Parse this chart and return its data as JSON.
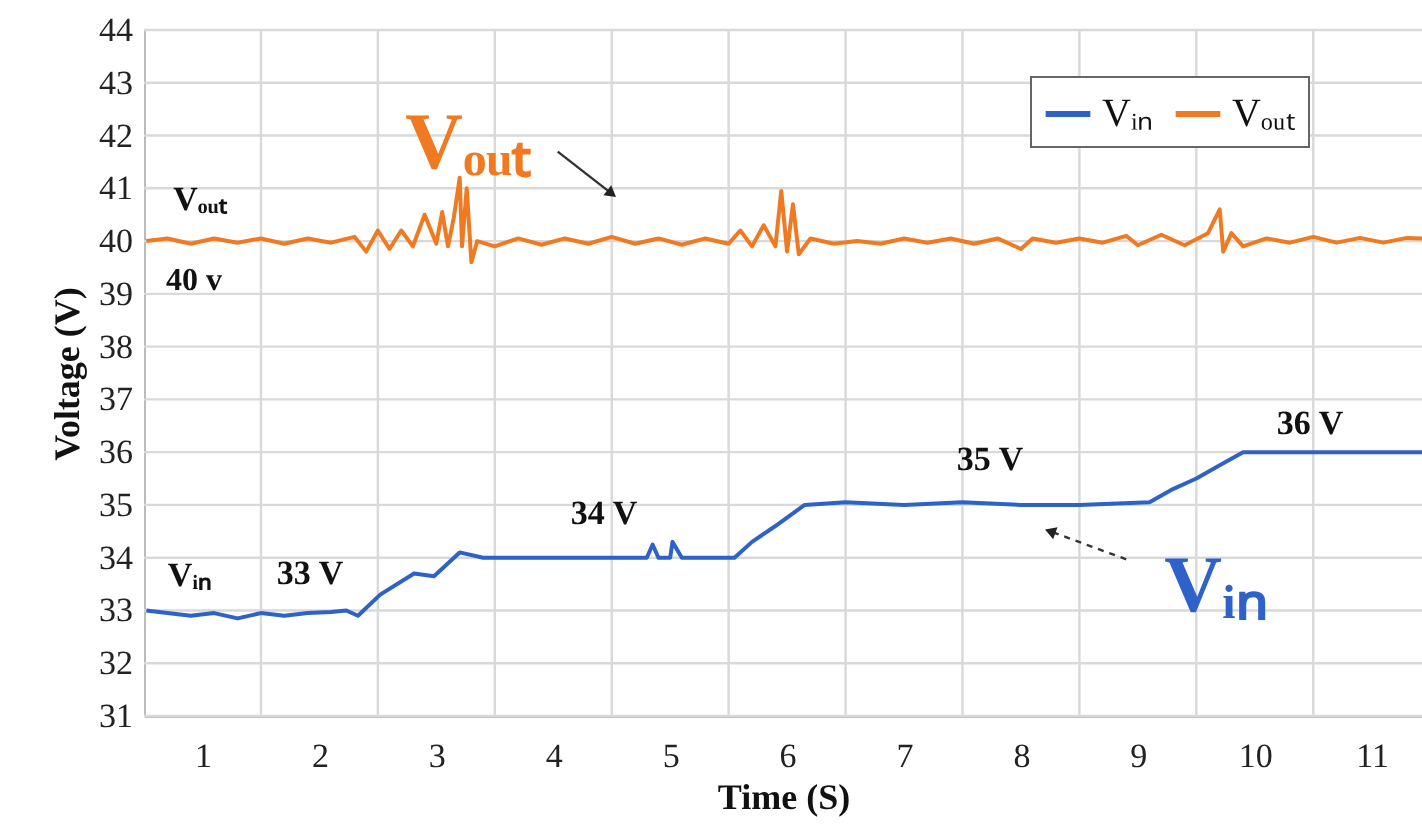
{
  "chart_data": {
    "type": "line",
    "xlabel": "Time (S)",
    "ylabel": "Voltage (V)",
    "xlim": [
      0.5,
      11.43
    ],
    "ylim": [
      31,
      44
    ],
    "xticks": [
      1,
      {
        "value": 1.5,
        "label": null
      },
      2,
      {
        "value": 2.5,
        "label": null
      },
      3,
      {
        "value": 3.5,
        "label": null
      },
      4,
      {
        "value": 4.5,
        "label": null
      },
      5,
      {
        "value": 5.5,
        "label": null
      },
      6,
      {
        "value": 6.5,
        "label": null
      },
      7,
      {
        "value": 7.5,
        "label": null
      },
      8,
      {
        "value": 8.5,
        "label": null
      },
      9,
      {
        "value": 9.5,
        "label": null
      },
      10,
      {
        "value": 10.5,
        "label": null
      },
      11
    ],
    "yticks": [
      31,
      32,
      33,
      34,
      35,
      36,
      37,
      38,
      39,
      40,
      41,
      42,
      43,
      44
    ],
    "grid": true,
    "legend": "top right",
    "line_style": "solid",
    "marker": "none",
    "series": [
      {
        "name": "Vᵢₙ",
        "color": "#2e62c9",
        "x": [
          0.52,
          0.7,
          0.9,
          1.1,
          1.3,
          1.5,
          1.7,
          1.9,
          2.1,
          2.23,
          2.33,
          2.52,
          2.81,
          2.98,
          3.2,
          3.4,
          4.0,
          4.8,
          4.85,
          4.9,
          5.0,
          5.02,
          5.1,
          5.55,
          5.7,
          5.9,
          6.15,
          6.5,
          7.0,
          7.5,
          8.0,
          8.5,
          9.1,
          9.3,
          9.5,
          9.7,
          9.9,
          10.5,
          11.0,
          11.43
        ],
        "values": [
          33.0,
          32.95,
          32.9,
          32.95,
          32.85,
          32.95,
          32.9,
          32.95,
          32.97,
          33.0,
          32.9,
          33.3,
          33.7,
          33.65,
          34.1,
          34.0,
          34.0,
          34.0,
          34.25,
          34.0,
          34.0,
          34.3,
          34.0,
          34.0,
          34.3,
          34.6,
          35.0,
          35.05,
          35.0,
          35.05,
          35.0,
          35.0,
          35.05,
          35.3,
          35.5,
          35.75,
          36.0,
          36.0,
          36.0,
          36.0
        ]
      },
      {
        "name": "Vₒᵤₜ",
        "color": "#f07a22",
        "x": [
          0.52,
          0.7,
          0.9,
          1.1,
          1.3,
          1.5,
          1.7,
          1.9,
          2.1,
          2.3,
          2.4,
          2.5,
          2.6,
          2.7,
          2.8,
          2.9,
          3.0,
          3.05,
          3.1,
          3.15,
          3.2,
          3.22,
          3.26,
          3.3,
          3.35,
          3.5,
          3.7,
          3.9,
          4.1,
          4.3,
          4.5,
          4.7,
          4.9,
          5.1,
          5.3,
          5.5,
          5.6,
          5.7,
          5.8,
          5.9,
          5.95,
          6.0,
          6.05,
          6.1,
          6.2,
          6.4,
          6.6,
          6.8,
          7.0,
          7.2,
          7.4,
          7.6,
          7.8,
          8.0,
          8.1,
          8.3,
          8.5,
          8.7,
          8.9,
          9.0,
          9.2,
          9.4,
          9.6,
          9.7,
          9.73,
          9.8,
          9.9,
          10.1,
          10.3,
          10.5,
          10.7,
          10.9,
          11.1,
          11.3,
          11.43
        ],
        "values": [
          40.0,
          40.05,
          39.95,
          40.05,
          39.97,
          40.05,
          39.95,
          40.05,
          39.97,
          40.08,
          39.8,
          40.2,
          39.85,
          40.2,
          39.9,
          40.5,
          39.95,
          40.55,
          39.9,
          40.45,
          41.2,
          39.9,
          41.0,
          39.6,
          40.0,
          39.9,
          40.05,
          39.93,
          40.05,
          39.95,
          40.08,
          39.95,
          40.05,
          39.93,
          40.05,
          39.95,
          40.2,
          39.9,
          40.3,
          39.9,
          40.95,
          39.8,
          40.7,
          39.75,
          40.05,
          39.95,
          40.0,
          39.95,
          40.05,
          39.97,
          40.05,
          39.95,
          40.05,
          39.85,
          40.05,
          39.97,
          40.05,
          39.97,
          40.1,
          39.92,
          40.12,
          39.92,
          40.15,
          40.6,
          39.8,
          40.15,
          39.9,
          40.05,
          39.97,
          40.08,
          39.97,
          40.06,
          39.97,
          40.06,
          40.05
        ]
      }
    ],
    "annotations": [
      {
        "text": "Vₒᵤₜ",
        "x": 4.5,
        "y": 40.9
      },
      "Vₒᵤₜ",
      "40 v",
      "Vᵢₙ",
      "33 V",
      "34 V",
      "35 V",
      "36 V",
      {
        "text": "Vᵢₙ",
        "x": 8.25,
        "y": 34.5
      }
    ]
  }
}
